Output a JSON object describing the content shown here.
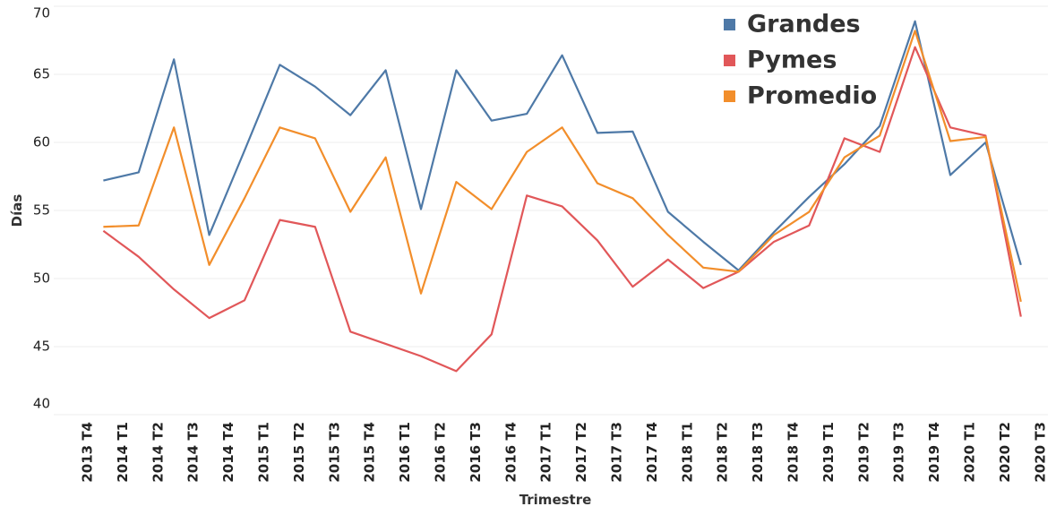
{
  "chart_data": {
    "type": "line",
    "x_label": "Trimestre",
    "y_label": "Días",
    "categories": [
      "2013 T4",
      "2014 T1",
      "2014 T2",
      "2014 T3",
      "2014 T4",
      "2015 T1",
      "2015 T2",
      "2015 T3",
      "2015 T4",
      "2016 T1",
      "2016 T2",
      "2016 T3",
      "2016 T4",
      "2017 T1",
      "2017 T2",
      "2017 T3",
      "2017 T4",
      "2018 T1",
      "2018 T2",
      "2018 T3",
      "2018 T4",
      "2019 T1",
      "2019 T2",
      "2019 T3",
      "2019 T4",
      "2020 T1",
      "2020 T2",
      "2020 T3"
    ],
    "series": [
      {
        "name": "Grandes",
        "color": "#4e79a7",
        "values": [
          null,
          57.2,
          57.8,
          66.1,
          53.2,
          59.4,
          65.7,
          64.1,
          62.0,
          65.3,
          55.1,
          65.3,
          61.6,
          62.1,
          66.4,
          60.7,
          60.8,
          54.9,
          52.7,
          50.6,
          53.4,
          56.0,
          58.4,
          61.2,
          68.9,
          57.6,
          60.0,
          51.0
        ]
      },
      {
        "name": "Pymes",
        "color": "#e15759",
        "values": [
          null,
          53.5,
          51.6,
          49.2,
          47.1,
          48.4,
          54.3,
          53.8,
          46.1,
          45.2,
          44.3,
          43.2,
          45.9,
          56.1,
          55.3,
          52.8,
          49.4,
          51.4,
          49.3,
          50.5,
          52.7,
          53.9,
          60.3,
          59.3,
          67.0,
          61.1,
          60.5,
          47.2
        ]
      },
      {
        "name": "Promedio",
        "color": "#f28e2b",
        "values": [
          null,
          53.8,
          53.9,
          61.1,
          51.0,
          55.9,
          61.1,
          60.3,
          54.9,
          58.9,
          48.9,
          57.1,
          55.1,
          59.3,
          61.1,
          57.0,
          55.9,
          53.2,
          50.8,
          50.5,
          53.2,
          54.9,
          58.9,
          60.5,
          68.2,
          60.1,
          60.4,
          48.3
        ]
      }
    ],
    "ylim": [
      40,
      70
    ],
    "yticks": [
      40,
      45,
      50,
      55,
      60,
      65,
      70
    ],
    "grid": true,
    "legend": "top-right"
  }
}
